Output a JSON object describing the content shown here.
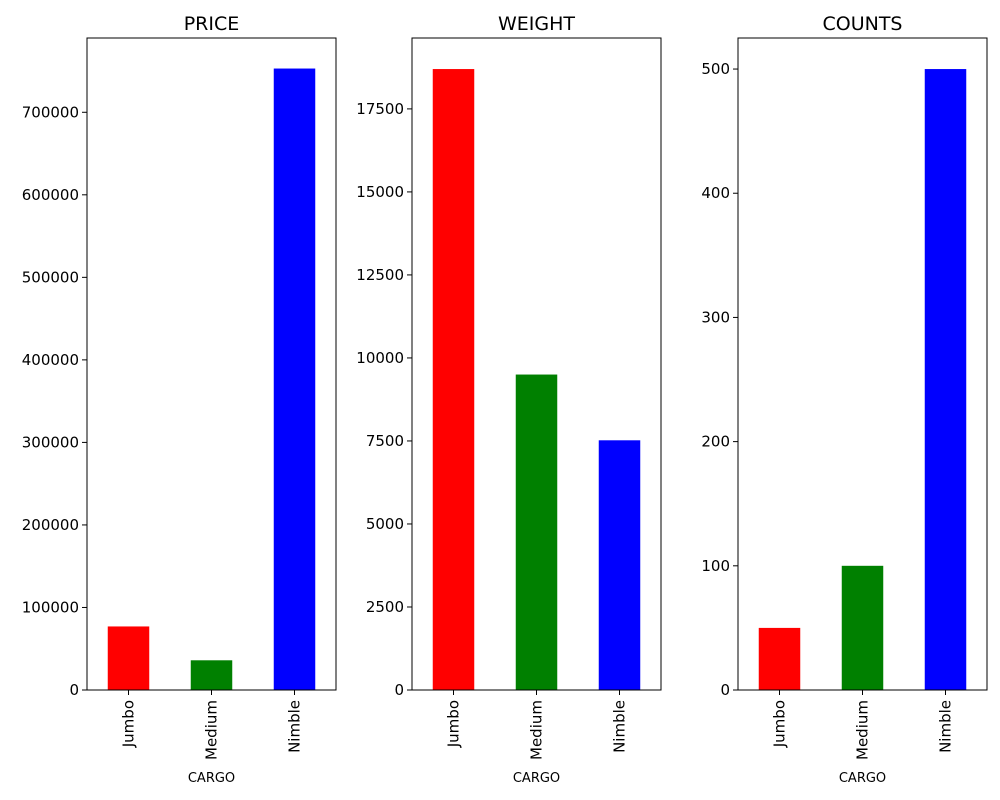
{
  "chart_data": [
    {
      "type": "bar",
      "title": "PRICE",
      "xlabel": "CARGO",
      "ylabel": "",
      "categories": [
        "Jumbo",
        "Medium",
        "Nimble"
      ],
      "values": [
        77000,
        36000,
        753000
      ],
      "colors": [
        "#ff0000",
        "#008000",
        "#0000ff"
      ],
      "ylim": [
        0,
        790000
      ],
      "yticks": [
        0,
        100000,
        200000,
        300000,
        400000,
        500000,
        600000,
        700000
      ],
      "ytick_labels": [
        "0",
        "100000",
        "200000",
        "300000",
        "400000",
        "500000",
        "600000",
        "700000"
      ],
      "grid": false
    },
    {
      "type": "bar",
      "title": "WEIGHT",
      "xlabel": "CARGO",
      "ylabel": "",
      "categories": [
        "Jumbo",
        "Medium",
        "Nimble"
      ],
      "values": [
        18700,
        9500,
        7520
      ],
      "colors": [
        "#ff0000",
        "#008000",
        "#0000ff"
      ],
      "ylim": [
        0,
        19635
      ],
      "yticks": [
        0,
        2500,
        5000,
        7500,
        10000,
        12500,
        15000,
        17500
      ],
      "ytick_labels": [
        "0",
        "2500",
        "5000",
        "7500",
        "10000",
        "12500",
        "15000",
        "17500"
      ],
      "grid": false
    },
    {
      "type": "bar",
      "title": "COUNTS",
      "xlabel": "CARGO",
      "ylabel": "",
      "categories": [
        "Jumbo",
        "Medium",
        "Nimble"
      ],
      "values": [
        50,
        100,
        500
      ],
      "colors": [
        "#ff0000",
        "#008000",
        "#0000ff"
      ],
      "ylim": [
        0,
        525
      ],
      "yticks": [
        0,
        100,
        200,
        300,
        400,
        500
      ],
      "ytick_labels": [
        "0",
        "100",
        "200",
        "300",
        "400",
        "500"
      ],
      "grid": false
    }
  ]
}
